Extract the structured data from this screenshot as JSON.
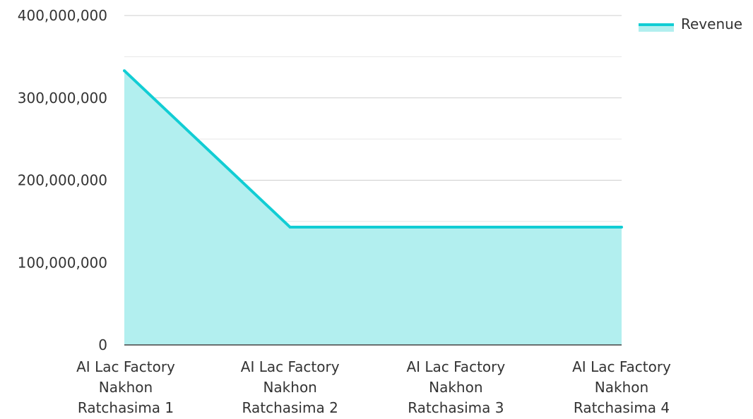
{
  "chart_data": {
    "type": "area",
    "categories": [
      [
        "AI Lac Factory",
        "Nakhon",
        "Ratchasima 1"
      ],
      [
        "AI Lac Factory",
        "Nakhon",
        "Ratchasima 2"
      ],
      [
        "AI Lac Factory",
        "Nakhon",
        "Ratchasima 3"
      ],
      [
        "AI Lac Factory",
        "Nakhon",
        "Ratchasima 4"
      ]
    ],
    "series": [
      {
        "name": "Revenue",
        "values": [
          333000000,
          143000000,
          143000000,
          143000000
        ],
        "line_color": "#12CDD4",
        "fill_color": "#B2EFEF"
      }
    ],
    "y_ticks": [
      "0",
      "100,000,000",
      "200,000,000",
      "300,000,000",
      "400,000,000"
    ],
    "ylim": [
      0,
      400000000
    ],
    "grid": true,
    "legend": "top-right",
    "title": "",
    "xlabel": "",
    "ylabel": ""
  }
}
